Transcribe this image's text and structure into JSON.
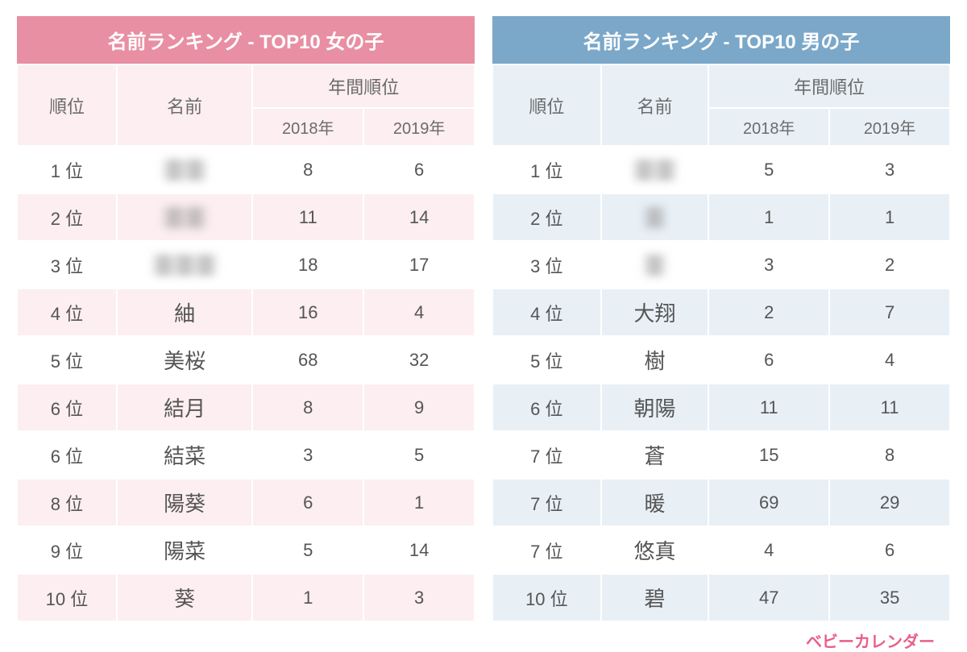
{
  "brand": "ベビーカレンダー",
  "girls": {
    "title": "名前ランキング - TOP10 女の子",
    "columns": {
      "rank": "順位",
      "name": "名前",
      "yearly": "年間順位",
      "y2018": "2018年",
      "y2019": "2019年"
    },
    "colors": {
      "title_bg": "#e88fa3",
      "header_bg": "#fceef1",
      "stripe_bg": "#fceef1"
    },
    "rows": [
      {
        "rank": "1 位",
        "name": "〓〓",
        "blurred": true,
        "y2018": "8",
        "y2019": "6"
      },
      {
        "rank": "2 位",
        "name": "〓〓",
        "blurred": true,
        "y2018": "11",
        "y2019": "14"
      },
      {
        "rank": "3 位",
        "name": "〓〓〓",
        "blurred": true,
        "y2018": "18",
        "y2019": "17"
      },
      {
        "rank": "4 位",
        "name": "紬",
        "blurred": false,
        "y2018": "16",
        "y2019": "4"
      },
      {
        "rank": "5 位",
        "name": "美桜",
        "blurred": false,
        "y2018": "68",
        "y2019": "32"
      },
      {
        "rank": "6 位",
        "name": "結月",
        "blurred": false,
        "y2018": "8",
        "y2019": "9"
      },
      {
        "rank": "6 位",
        "name": "結菜",
        "blurred": false,
        "y2018": "3",
        "y2019": "5"
      },
      {
        "rank": "8 位",
        "name": "陽葵",
        "blurred": false,
        "y2018": "6",
        "y2019": "1"
      },
      {
        "rank": "9 位",
        "name": "陽菜",
        "blurred": false,
        "y2018": "5",
        "y2019": "14"
      },
      {
        "rank": "10 位",
        "name": "葵",
        "blurred": false,
        "y2018": "1",
        "y2019": "3"
      }
    ]
  },
  "boys": {
    "title": "名前ランキング - TOP10 男の子",
    "columns": {
      "rank": "順位",
      "name": "名前",
      "yearly": "年間順位",
      "y2018": "2018年",
      "y2019": "2019年"
    },
    "colors": {
      "title_bg": "#7ba8c9",
      "header_bg": "#e8f0f6",
      "stripe_bg": "#e8f0f6"
    },
    "rows": [
      {
        "rank": "1 位",
        "name": "〓〓",
        "blurred": true,
        "y2018": "5",
        "y2019": "3"
      },
      {
        "rank": "2 位",
        "name": "〓",
        "blurred": true,
        "y2018": "1",
        "y2019": "1"
      },
      {
        "rank": "3 位",
        "name": "〓",
        "blurred": true,
        "y2018": "3",
        "y2019": "2"
      },
      {
        "rank": "4 位",
        "name": "大翔",
        "blurred": false,
        "y2018": "2",
        "y2019": "7"
      },
      {
        "rank": "5 位",
        "name": "樹",
        "blurred": false,
        "y2018": "6",
        "y2019": "4"
      },
      {
        "rank": "6 位",
        "name": "朝陽",
        "blurred": false,
        "y2018": "11",
        "y2019": "11"
      },
      {
        "rank": "7 位",
        "name": "蒼",
        "blurred": false,
        "y2018": "15",
        "y2019": "8"
      },
      {
        "rank": "7 位",
        "name": "暖",
        "blurred": false,
        "y2018": "69",
        "y2019": "29"
      },
      {
        "rank": "7 位",
        "name": "悠真",
        "blurred": false,
        "y2018": "4",
        "y2019": "6"
      },
      {
        "rank": "10 位",
        "name": "碧",
        "blurred": false,
        "y2018": "47",
        "y2019": "35"
      }
    ]
  }
}
